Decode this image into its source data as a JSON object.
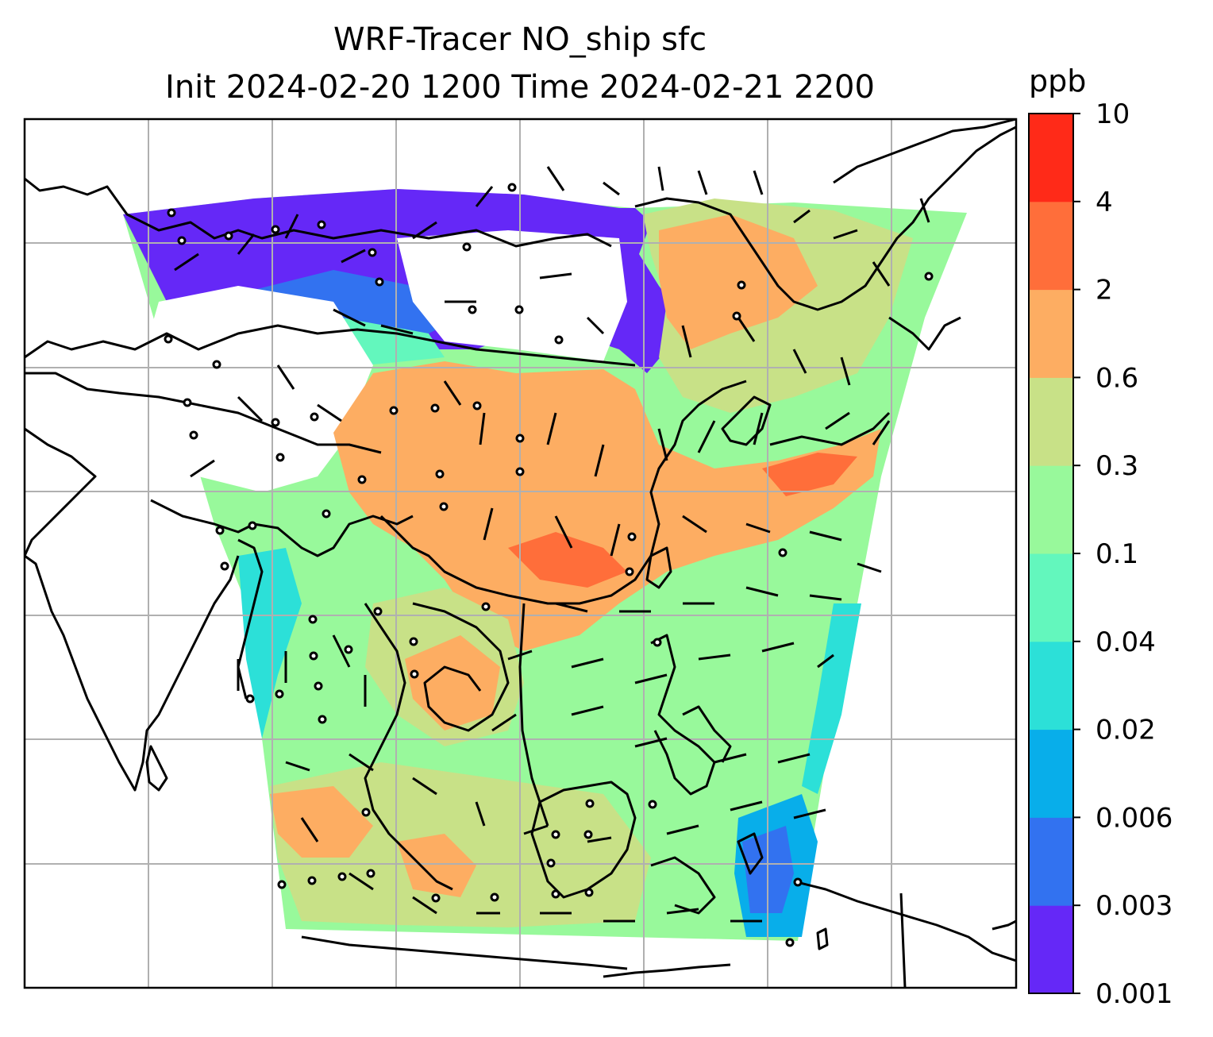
{
  "title": {
    "line1": "WRF-Tracer NO_ship sfc",
    "line2": "Init 2024-02-20 1200 Time 2024-02-21 2200"
  },
  "colorbar": {
    "unit": "ppb",
    "levels": [
      "0.001",
      "0.003",
      "0.006",
      "0.02",
      "0.04",
      "0.1",
      "0.3",
      "0.6",
      "2",
      "4",
      "10"
    ],
    "colors": [
      "#6528f7",
      "#3272f0",
      "#08aeea",
      "#2ce0d8",
      "#63f7bd",
      "#98f99b",
      "#c8e187",
      "#fdad62",
      "#ff6e3a",
      "#ff2a18"
    ]
  },
  "map": {
    "field": "NO_ship surface concentration",
    "overlays": [
      "coastlines",
      "country-borders",
      "lat-lon-gridlines",
      "wind-barbs"
    ],
    "background": "#ffffff"
  }
}
